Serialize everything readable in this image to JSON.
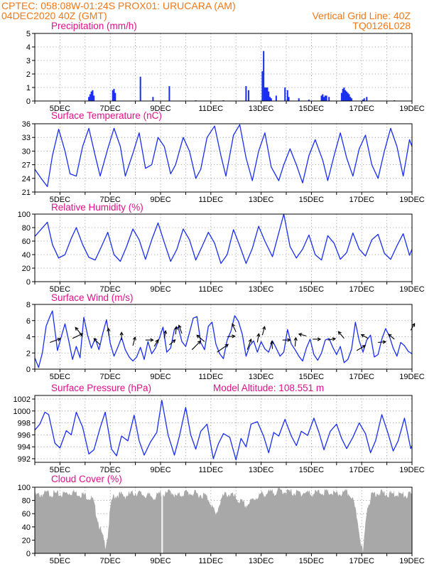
{
  "header": {
    "line1_left": "CPTEC:   058:08W-01:24S   PROX01: URUCARA (AM)",
    "line2_left": "04DEC2020 40Z (GMT)",
    "line2_right": "Vertical Grid Line: 40Z",
    "line3_right": "TQ0126L028"
  },
  "colors": {
    "header": "#f07818",
    "title": "#e0108a",
    "series": "#1a2ef0",
    "cloud": "#a8a8a8",
    "grid": "#909090"
  },
  "panels": {
    "precip": {
      "title": "Precipitation (mm/h)"
    },
    "temp": {
      "title": "Surface Temperature (nC)"
    },
    "rh": {
      "title": "Relative Humidity (%)"
    },
    "wind": {
      "title": "Surface Wind (m/s)"
    },
    "pres": {
      "title": "Surface Pressure (hPa)",
      "extra": "Model Altitude: 108.551 m"
    },
    "cloud": {
      "title": "Cloud Cover (%)"
    }
  },
  "chart_data": [
    {
      "type": "bar",
      "panel": "precip",
      "ylim": [
        0,
        5
      ],
      "yticks": [
        0,
        1,
        2,
        3,
        4,
        5
      ],
      "xlim_days": [
        4,
        19
      ],
      "xtick_labels": [
        "5DEC",
        "7DEC",
        "9DEC",
        "11DEC",
        "13DEC",
        "15DEC",
        "17DEC",
        "19DEC"
      ],
      "grid": true,
      "day": [
        6.15,
        6.2,
        6.25,
        6.3,
        6.35,
        7.1,
        7.15,
        7.2,
        8.2,
        8.7,
        9.35,
        10.4,
        11.5,
        12.4,
        12.5,
        13.05,
        13.1,
        13.15,
        13.2,
        13.25,
        13.3,
        13.35,
        13.4,
        13.6,
        13.95,
        14.05,
        14.1,
        14.5,
        14.9,
        15.4,
        15.45,
        15.5,
        15.55,
        15.6,
        15.7,
        16.2,
        16.25,
        16.3,
        16.35,
        16.4,
        16.45,
        16.5,
        16.55,
        16.6,
        17.05,
        17.1,
        17.2,
        18.3
      ],
      "values": [
        0.3,
        0.5,
        0.7,
        0.8,
        0.4,
        0.8,
        0.9,
        0.6,
        1.8,
        0.3,
        1.1,
        0.05,
        0.05,
        1.1,
        0.8,
        2.2,
        3.7,
        1.0,
        1.0,
        1.0,
        0.7,
        0.3,
        0.2,
        0.4,
        1.0,
        0.8,
        0.3,
        0.2,
        0.1,
        0.4,
        0.5,
        0.3,
        0.4,
        0.4,
        0.3,
        0.6,
        0.9,
        1.0,
        0.8,
        0.7,
        0.6,
        0.5,
        0.3,
        0.2,
        0.1,
        0.2,
        0.3,
        0.05
      ]
    },
    {
      "type": "line",
      "panel": "temp",
      "ylim": [
        21,
        36
      ],
      "yticks": [
        21,
        24,
        27,
        30,
        33,
        36
      ],
      "xlim_days": [
        4,
        19
      ],
      "xtick_labels": [
        "5DEC",
        "7DEC",
        "9DEC",
        "11DEC",
        "13DEC",
        "15DEC",
        "17DEC",
        "19DEC"
      ],
      "grid": true,
      "day": [
        4,
        4.25,
        4.5,
        4.7,
        4.95,
        5.2,
        5.4,
        5.65,
        5.9,
        6.15,
        6.4,
        6.6,
        6.9,
        7.15,
        7.4,
        7.6,
        7.9,
        8.15,
        8.4,
        8.65,
        8.9,
        9.15,
        9.4,
        9.6,
        9.9,
        10.15,
        10.4,
        10.6,
        10.85,
        11.15,
        11.4,
        11.6,
        11.9,
        12.15,
        12.4,
        12.65,
        12.9,
        13.15,
        13.4,
        13.7,
        13.9,
        14.15,
        14.4,
        14.65,
        14.9,
        15.15,
        15.45,
        15.65,
        15.9,
        16.15,
        16.4,
        16.65,
        16.9,
        17.15,
        17.4,
        17.65,
        17.9,
        18.15,
        18.4,
        18.65,
        18.9,
        19
      ],
      "values": [
        26,
        24,
        22.2,
        29,
        34.8,
        30,
        25,
        24.5,
        31,
        35,
        29,
        24.5,
        30.5,
        35,
        31,
        24.5,
        29.5,
        34,
        26.2,
        27,
        33,
        31,
        25,
        27,
        33,
        30,
        24,
        26,
        33,
        35.5,
        29,
        24.5,
        33.5,
        35.8,
        28.5,
        23.5,
        30,
        34,
        26.5,
        23.5,
        27,
        30.5,
        27,
        23,
        29,
        32.5,
        28,
        23.5,
        29,
        34,
        28.5,
        24.5,
        30.5,
        33.5,
        27,
        24,
        30,
        35,
        31,
        24.5,
        32.5,
        31
      ]
    },
    {
      "type": "line",
      "panel": "rh",
      "ylim": [
        0,
        100
      ],
      "yticks": [
        0,
        20,
        40,
        60,
        80,
        100
      ],
      "xlim_days": [
        4,
        19
      ],
      "xtick_labels": [
        "5DEC",
        "7DEC",
        "9DEC",
        "11DEC",
        "13DEC",
        "15DEC",
        "17DEC",
        "19DEC"
      ],
      "grid": true,
      "day": [
        4,
        4.5,
        4.7,
        4.95,
        5.2,
        5.45,
        5.65,
        5.9,
        6.15,
        6.4,
        6.65,
        6.9,
        7.15,
        7.4,
        7.65,
        7.9,
        8.15,
        8.4,
        8.65,
        8.9,
        9.15,
        9.4,
        9.65,
        9.9,
        10.15,
        10.4,
        10.65,
        10.9,
        11.15,
        11.4,
        11.65,
        11.9,
        12.15,
        12.4,
        12.65,
        12.9,
        13.15,
        13.45,
        13.65,
        13.9,
        14.15,
        14.4,
        14.65,
        14.9,
        15.15,
        15.4,
        15.65,
        15.9,
        16.15,
        16.4,
        16.65,
        16.9,
        17.15,
        17.4,
        17.65,
        17.9,
        18.15,
        18.4,
        18.65,
        18.9,
        19
      ],
      "values": [
        67,
        88,
        55,
        35,
        40,
        64,
        80,
        55,
        36,
        32,
        52,
        73,
        40,
        30,
        52,
        78,
        62,
        33,
        62,
        87,
        58,
        30,
        48,
        78,
        62,
        32,
        52,
        73,
        57,
        27,
        40,
        77,
        53,
        27,
        49,
        82,
        60,
        37,
        65,
        100,
        52,
        35,
        48,
        69,
        40,
        32,
        68,
        57,
        33,
        43,
        72,
        48,
        38,
        62,
        70,
        42,
        33,
        53,
        71,
        39,
        48
      ]
    },
    {
      "type": "line",
      "panel": "wind",
      "ylim": [
        0,
        8
      ],
      "yticks": [
        0,
        2,
        4,
        6,
        8
      ],
      "xlim_days": [
        4,
        19
      ],
      "xtick_labels": [
        "5DEC",
        "7DEC",
        "9DEC",
        "11DEC",
        "13DEC",
        "15DEC",
        "17DEC",
        "19DEC"
      ],
      "grid": true,
      "day": [
        4,
        4.15,
        4.3,
        4.45,
        4.6,
        4.7,
        4.8,
        4.9,
        5.05,
        5.2,
        5.35,
        5.5,
        5.65,
        5.8,
        5.95,
        6.1,
        6.25,
        6.4,
        6.55,
        6.7,
        6.85,
        7.0,
        7.15,
        7.3,
        7.45,
        7.6,
        7.75,
        7.9,
        8.05,
        8.2,
        8.35,
        8.5,
        8.65,
        8.8,
        8.95,
        9.1,
        9.25,
        9.4,
        9.55,
        9.7,
        9.85,
        10.0,
        10.15,
        10.3,
        10.45,
        10.6,
        10.75,
        10.9,
        11.05,
        11.2,
        11.35,
        11.5,
        11.65,
        11.8,
        11.95,
        12.1,
        12.25,
        12.4,
        12.55,
        12.7,
        12.85,
        13.0,
        13.15,
        13.3,
        13.45,
        13.6,
        13.75,
        13.9,
        14.05,
        14.2,
        14.35,
        14.5,
        14.65,
        14.8,
        14.95,
        15.1,
        15.25,
        15.4,
        15.55,
        15.7,
        15.85,
        16.0,
        16.15,
        16.3,
        16.45,
        16.6,
        16.75,
        16.9,
        17.05,
        17.2,
        17.35,
        17.5,
        17.65,
        17.8,
        17.95,
        18.1,
        18.25,
        18.4,
        18.55,
        18.7,
        18.85,
        19.0
      ],
      "values": [
        1.4,
        0.2,
        2.0,
        5.3,
        6.5,
        7.2,
        4.8,
        2.3,
        4.0,
        5.6,
        3.5,
        1.2,
        2.8,
        1.4,
        6.4,
        4.2,
        2.6,
        3.8,
        2.4,
        4.4,
        6.1,
        3.2,
        1.6,
        2.7,
        3.9,
        2.4,
        1.5,
        1.0,
        1.5,
        2.7,
        1.2,
        3.4,
        1.9,
        2.6,
        3.8,
        5.2,
        2.1,
        2.6,
        4.9,
        5.2,
        3.4,
        2.8,
        4.5,
        6.3,
        6.5,
        3.3,
        2.4,
        5.3,
        5.8,
        3.1,
        1.9,
        1.3,
        3.6,
        4.7,
        6.6,
        5.9,
        4.3,
        1.6,
        2.9,
        3.5,
        2.1,
        3.4,
        2.5,
        2.1,
        3.5,
        2.6,
        1.6,
        2.1,
        4.9,
        3.1,
        2.4,
        1.6,
        1.0,
        2.6,
        3.7,
        1.8,
        1.1,
        2.0,
        3.6,
        3.8,
        2.7,
        1.8,
        2.8,
        0.8,
        1.2,
        2.5,
        5.8,
        3.5,
        2.1,
        3.6,
        4.2,
        1.5,
        1.8,
        3.7,
        5.0,
        4.1,
        2.6,
        1.6,
        3.3,
        2.9,
        2.2,
        1.9
      ],
      "arrows": [
        {
          "day": 4.6,
          "value": 3.3,
          "dir_deg": 20,
          "mag": 3
        },
        {
          "day": 5.5,
          "value": 3.8,
          "dir_deg": 25,
          "mag": 3
        },
        {
          "day": 5.9,
          "value": 4.1,
          "dir_deg": 130,
          "mag": 3
        },
        {
          "day": 6.6,
          "value": 3.0,
          "dir_deg": 135,
          "mag": 2
        },
        {
          "day": 6.95,
          "value": 4.1,
          "dir_deg": 95,
          "mag": 1.5
        },
        {
          "day": 7.45,
          "value": 3.6,
          "dir_deg": 90,
          "mag": 1.5
        },
        {
          "day": 7.9,
          "value": 2.9,
          "dir_deg": 75,
          "mag": 2
        },
        {
          "day": 8.4,
          "value": 3.6,
          "dir_deg": 0,
          "mag": 1.5
        },
        {
          "day": 8.75,
          "value": 2.8,
          "dir_deg": 60,
          "mag": 1.5
        },
        {
          "day": 9.15,
          "value": 3.8,
          "dir_deg": 80,
          "mag": 1.5
        },
        {
          "day": 9.35,
          "value": 3.0,
          "dir_deg": 40,
          "mag": 1.5
        },
        {
          "day": 9.6,
          "value": 4.3,
          "dir_deg": 85,
          "mag": 1.5
        },
        {
          "day": 9.85,
          "value": 4.4,
          "dir_deg": 110,
          "mag": 2
        },
        {
          "day": 10.25,
          "value": 2.4,
          "dir_deg": 45,
          "mag": 3.5
        },
        {
          "day": 10.75,
          "value": 3.4,
          "dir_deg": 140,
          "mag": 2.5
        },
        {
          "day": 11.25,
          "value": 2.1,
          "dir_deg": 35,
          "mag": 4
        },
        {
          "day": 11.65,
          "value": 4.0,
          "dir_deg": 5,
          "mag": 1.5
        },
        {
          "day": 12.0,
          "value": 4.6,
          "dir_deg": 115,
          "mag": 2
        },
        {
          "day": 12.45,
          "value": 2.4,
          "dir_deg": 70,
          "mag": 3
        },
        {
          "day": 12.85,
          "value": 3.3,
          "dir_deg": 80,
          "mag": 2
        },
        {
          "day": 13.05,
          "value": 4.2,
          "dir_deg": 75,
          "mag": 2
        },
        {
          "day": 13.45,
          "value": 2.5,
          "dir_deg": 95,
          "mag": 1.5
        },
        {
          "day": 13.85,
          "value": 3.6,
          "dir_deg": 0,
          "mag": 1.5
        },
        {
          "day": 14.35,
          "value": 2.8,
          "dir_deg": 85,
          "mag": 2
        },
        {
          "day": 14.8,
          "value": 4.1,
          "dir_deg": 165,
          "mag": 1.5
        },
        {
          "day": 15.05,
          "value": 3.7,
          "dir_deg": 0,
          "mag": 1.5
        },
        {
          "day": 15.65,
          "value": 3.6,
          "dir_deg": 10,
          "mag": 1.5
        },
        {
          "day": 16.3,
          "value": 3.8,
          "dir_deg": 130,
          "mag": 2
        },
        {
          "day": 16.8,
          "value": 2.3,
          "dir_deg": 30,
          "mag": 2.5
        },
        {
          "day": 17.25,
          "value": 3.8,
          "dir_deg": 150,
          "mag": 1.5
        },
        {
          "day": 17.65,
          "value": 3.3,
          "dir_deg": 5,
          "mag": 1.5
        },
        {
          "day": 18.3,
          "value": 3.7,
          "dir_deg": 140,
          "mag": 1.5
        },
        {
          "day": 18.95,
          "value": 4.8,
          "dir_deg": 60,
          "mag": 1.5
        }
      ]
    },
    {
      "type": "line",
      "panel": "pres",
      "ylim": [
        991.4,
        1002.6
      ],
      "yticks": [
        992,
        994,
        996,
        998,
        1000,
        1002
      ],
      "xlim_days": [
        4,
        19
      ],
      "xtick_labels": [
        "5DEC",
        "7DEC",
        "9DEC",
        "11DEC",
        "13DEC",
        "15DEC",
        "17DEC",
        "19DEC"
      ],
      "grid": true,
      "day": [
        4,
        4.2,
        4.4,
        4.55,
        4.8,
        5.0,
        5.25,
        5.45,
        5.65,
        5.9,
        6.15,
        6.35,
        6.6,
        6.8,
        7.05,
        7.25,
        7.45,
        7.7,
        7.95,
        8.15,
        8.35,
        8.6,
        8.85,
        9.05,
        9.3,
        9.55,
        9.75,
        10.0,
        10.2,
        10.4,
        10.6,
        10.85,
        11.1,
        11.3,
        11.5,
        11.75,
        12.0,
        12.2,
        12.4,
        12.6,
        12.85,
        13.1,
        13.3,
        13.5,
        13.7,
        13.95,
        14.2,
        14.4,
        14.6,
        14.85,
        15.1,
        15.3,
        15.5,
        15.75,
        16.0,
        16.2,
        16.4,
        16.65,
        16.9,
        17.15,
        17.35,
        17.55,
        17.8,
        18.05,
        18.25,
        18.45,
        18.7,
        18.95,
        19
      ],
      "values": [
        996.8,
        997.8,
        999.8,
        999.4,
        994.6,
        993.8,
        996.7,
        996.0,
        999.8,
        997.3,
        992.8,
        993.5,
        997.2,
        999.8,
        993.6,
        992.5,
        995.8,
        995.0,
        999.3,
        995.0,
        992.6,
        994.8,
        996.4,
        1001.8,
        996.0,
        992.6,
        995.8,
        1000.6,
        996.0,
        993.6,
        996.6,
        997.8,
        992.0,
        994.5,
        996.2,
        995.6,
        991.8,
        995.4,
        994.0,
        997.8,
        998.2,
        995.8,
        993.0,
        996.4,
        995.8,
        998.6,
        995.8,
        994.2,
        996.6,
        995.9,
        998.8,
        996.4,
        993.5,
        996.6,
        997.8,
        995.4,
        993.7,
        995.6,
        998.0,
        996.2,
        993.0,
        995.0,
        999.4,
        996.2,
        993.3,
        995.0,
        998.8,
        993.7,
        994.2
      ]
    },
    {
      "type": "area",
      "panel": "cloud",
      "ylim": [
        0,
        100
      ],
      "yticks": [
        0,
        20,
        40,
        60,
        80,
        100
      ],
      "xlim_days": [
        4,
        19
      ],
      "xtick_labels": [
        "5DEC",
        "7DEC",
        "9DEC",
        "11DEC",
        "13DEC",
        "15DEC",
        "17DEC",
        "19DEC"
      ],
      "grid": true,
      "day": [
        4,
        4.5,
        5.0,
        5.5,
        6.0,
        6.3,
        6.6,
        6.8,
        6.9,
        7.0,
        7.1,
        7.3,
        7.6,
        8.0,
        8.5,
        8.8,
        9.0,
        9.2,
        9.4,
        9.5,
        9.6,
        9.8,
        10.0,
        10.4,
        10.8,
        11.0,
        11.2,
        11.4,
        11.6,
        11.8,
        12.0,
        12.4,
        12.8,
        13.0,
        13.4,
        13.8,
        14.0,
        14.4,
        14.8,
        15.0,
        15.4,
        15.8,
        16.0,
        16.4,
        16.6,
        16.8,
        16.95,
        17.05,
        17.2,
        17.4,
        17.6,
        17.8,
        18.0,
        18.4,
        18.8,
        19
      ],
      "values": [
        90,
        94,
        92,
        96,
        91,
        85,
        40,
        15,
        30,
        70,
        88,
        92,
        90,
        95,
        90,
        88,
        94,
        92,
        97,
        95,
        88,
        92,
        95,
        93,
        90,
        80,
        60,
        85,
        93,
        92,
        86,
        75,
        88,
        92,
        95,
        98,
        96,
        94,
        95,
        93,
        96,
        94,
        92,
        95,
        90,
        60,
        25,
        2,
        70,
        92,
        95,
        94,
        92,
        93,
        90,
        92
      ]
    }
  ]
}
